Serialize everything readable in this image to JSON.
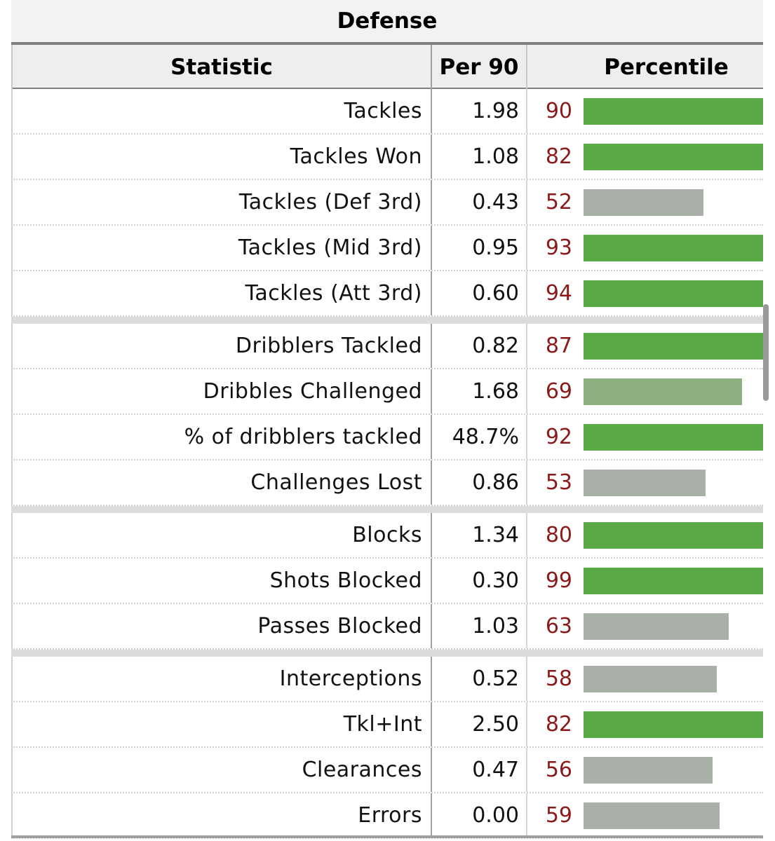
{
  "caption": "Defense",
  "headers": {
    "statistic": "Statistic",
    "per90": "Per 90",
    "percentile": "Percentile"
  },
  "colors": {
    "percentile_text": "#8b1a1a",
    "bar_high": "#5aab46",
    "bar_mid": "#8cb07e",
    "bar_low": "#a8b0a8"
  },
  "groups": [
    [
      {
        "stat": "Tackles",
        "per90": "1.98",
        "percentile": 90
      },
      {
        "stat": "Tackles Won",
        "per90": "1.08",
        "percentile": 82
      },
      {
        "stat": "Tackles (Def 3rd)",
        "per90": "0.43",
        "percentile": 52
      },
      {
        "stat": "Tackles (Mid 3rd)",
        "per90": "0.95",
        "percentile": 93
      },
      {
        "stat": "Tackles (Att 3rd)",
        "per90": "0.60",
        "percentile": 94
      }
    ],
    [
      {
        "stat": "Dribblers Tackled",
        "per90": "0.82",
        "percentile": 87
      },
      {
        "stat": "Dribbles Challenged",
        "per90": "1.68",
        "percentile": 69
      },
      {
        "stat": "% of dribblers tackled",
        "per90": "48.7%",
        "percentile": 92
      },
      {
        "stat": "Challenges Lost",
        "per90": "0.86",
        "percentile": 53
      }
    ],
    [
      {
        "stat": "Blocks",
        "per90": "1.34",
        "percentile": 80
      },
      {
        "stat": "Shots Blocked",
        "per90": "0.30",
        "percentile": 99
      },
      {
        "stat": "Passes Blocked",
        "per90": "1.03",
        "percentile": 63
      }
    ],
    [
      {
        "stat": "Interceptions",
        "per90": "0.52",
        "percentile": 58
      },
      {
        "stat": "Tkl+Int",
        "per90": "2.50",
        "percentile": 82
      },
      {
        "stat": "Clearances",
        "per90": "0.47",
        "percentile": 56
      },
      {
        "stat": "Errors",
        "per90": "0.00",
        "percentile": 59
      }
    ]
  ]
}
